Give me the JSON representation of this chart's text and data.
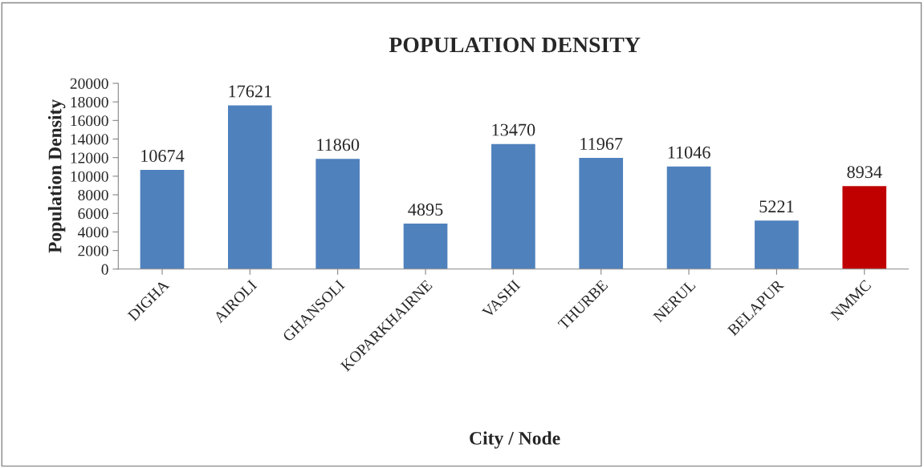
{
  "chart_data": {
    "type": "bar",
    "title": "POPULATION DENSITY",
    "xlabel": "City / Node",
    "ylabel": "Population Density",
    "categories": [
      "DIGHA",
      "AIROLI",
      "GHANSOLI",
      "KOPARKHAIRNE",
      "VASHI",
      "THURBE",
      "NERUL",
      "BELAPUR",
      "NMMC"
    ],
    "values": [
      10674,
      17621,
      11860,
      4895,
      13470,
      11967,
      11046,
      5221,
      8934
    ],
    "colors": [
      "#4f81bd",
      "#4f81bd",
      "#4f81bd",
      "#4f81bd",
      "#4f81bd",
      "#4f81bd",
      "#4f81bd",
      "#4f81bd",
      "#c00000"
    ],
    "ylim": [
      0,
      20000
    ],
    "yticks": [
      0,
      2000,
      4000,
      6000,
      8000,
      10000,
      12000,
      14000,
      16000,
      18000,
      20000
    ],
    "data_labels": true,
    "grid": false,
    "legend": false
  }
}
